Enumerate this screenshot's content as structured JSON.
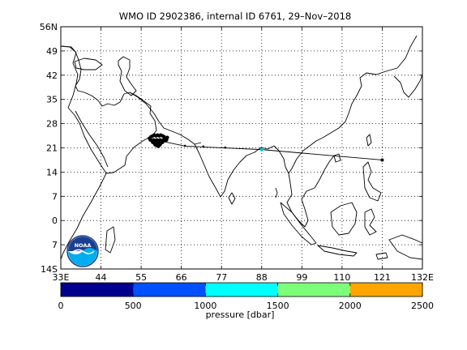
{
  "title": "WMO ID 2902386, internal ID 6761, 29–Nov–2018",
  "map": {
    "lon_range": [
      33,
      132
    ],
    "lat_range": [
      -14,
      56
    ],
    "lon_ticks": [
      33,
      44,
      55,
      66,
      77,
      88,
      99,
      110,
      121,
      132
    ],
    "lon_tick_labels": [
      "33E",
      "44",
      "55",
      "66",
      "77",
      "88",
      "99",
      "110",
      "121",
      "132E"
    ],
    "lat_ticks": [
      56,
      49,
      42,
      35,
      28,
      21,
      14,
      7,
      0,
      -7,
      -14
    ],
    "lat_tick_labels": [
      "56N",
      "49",
      "42",
      "35",
      "28",
      "21",
      "14",
      "7",
      "0",
      "7",
      "14S"
    ],
    "grid": true,
    "coastline_color": "#000000",
    "track": {
      "points": [
        [
          59.0,
          23.3
        ],
        [
          67.0,
          21.5
        ],
        [
          88.0,
          20.5
        ],
        [
          121.0,
          17.5
        ]
      ],
      "end_marker": [
        121.0,
        17.5
      ],
      "cluster_center": [
        59.5,
        23.3
      ],
      "mid_marker": [
        88.0,
        20.5
      ],
      "mid_marker_color": "#00c8d8"
    }
  },
  "colorbar": {
    "ticks": [
      "0",
      "500",
      "1000",
      "1500",
      "2000",
      "2500"
    ],
    "label": "pressure [dbar]",
    "colors": [
      "#00008f",
      "#0050ff",
      "#00ffff",
      "#7dff7a",
      "#ffa500"
    ],
    "range": [
      0,
      2500
    ]
  },
  "logo": {
    "text": "NOAA",
    "icon": "noaa-logo-icon",
    "colors": [
      "#1b3f8f",
      "#00aef0",
      "#ffffff"
    ]
  }
}
